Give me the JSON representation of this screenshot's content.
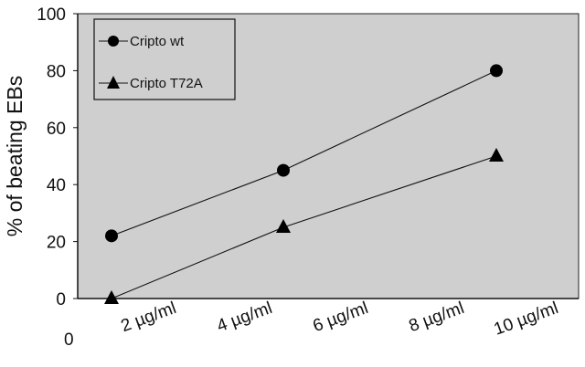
{
  "chart_data": {
    "type": "line",
    "title": "",
    "xlabel": "",
    "ylabel": "% of beating EBs",
    "x_origin_label": "0",
    "categories": [
      "2 µg/ml",
      "4 µg/ml",
      "6 µg/ml",
      "8 µg/ml",
      "10 µg/ml"
    ],
    "ylim": [
      0,
      100
    ],
    "yticks": [
      0,
      20,
      40,
      60,
      80,
      100
    ],
    "grid": false,
    "legend": "top-left",
    "plot_background": "#cfcfcf",
    "series": [
      {
        "name": "Cripto wt",
        "marker": "circle",
        "x": [
          "2 µg/ml",
          "4 µg/ml",
          "10 µg/ml"
        ],
        "values": [
          22,
          45,
          80
        ]
      },
      {
        "name": "Cripto T72A",
        "marker": "triangle",
        "x": [
          "2 µg/ml",
          "4 µg/ml",
          "10 µg/ml"
        ],
        "values": [
          0,
          25,
          50
        ]
      }
    ]
  }
}
